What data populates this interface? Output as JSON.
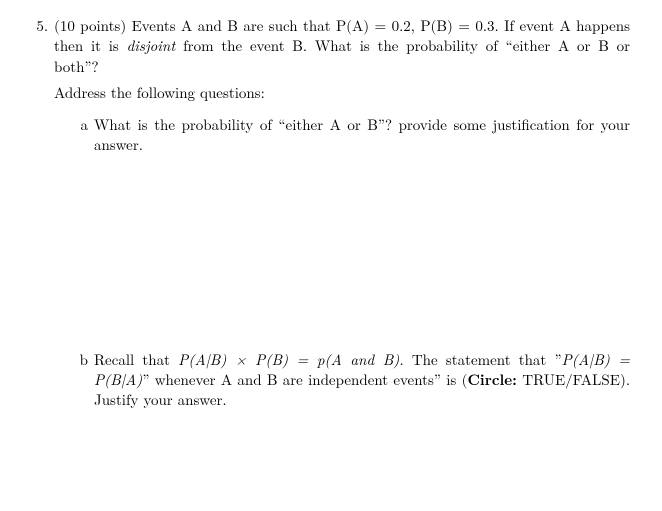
{
  "question": {
    "number": "5.",
    "points_prefix": "(10 points) Events A and B are such that P(A) = 0.2, P(B) = 0.3. If event A happens then it is ",
    "disjoint": "disjoint",
    "points_suffix": " from the event B. What is the probability of “either A or B or both”?",
    "address": "Address the following questions:"
  },
  "parts": {
    "a": {
      "label": "a",
      "text": "What is the probability of “either A or B”? provide some justification for your answer."
    },
    "b": {
      "label": "b",
      "pre": "Recall that ",
      "eq1": "P(A|B) × P(B) = p(A and B)",
      "mid1": ". The statement that ”",
      "eq2": "P(A|B) = P(B|A)",
      "mid2": "” whenever A and B are independent events” is (",
      "circle_bold": "Circle:",
      "tf": " TRUE/FALSE). Justify your answer."
    }
  }
}
